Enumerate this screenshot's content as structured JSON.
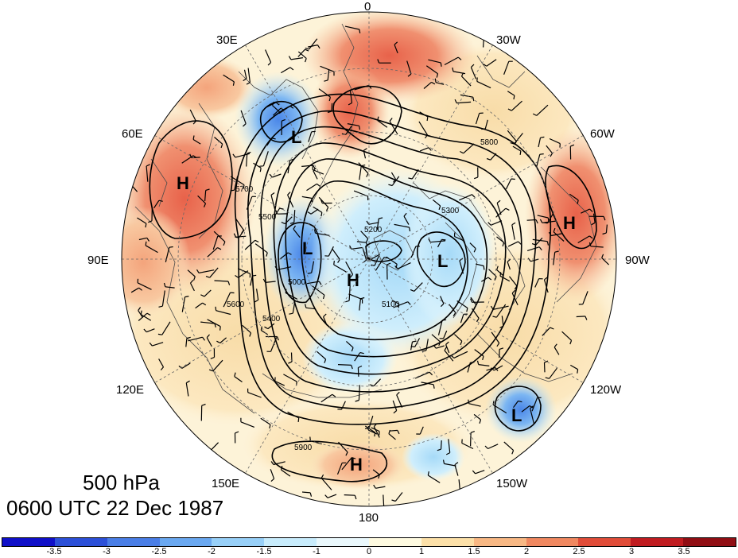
{
  "map": {
    "title_line1": "500 hPa",
    "title_line2": "0600 UTC 22 Dec 1987",
    "projection": "north polar stereographic",
    "longitude_labels": {
      "top": "0",
      "top_right_1": "30W",
      "right_1": "60W",
      "right": "90W",
      "right_2": "120W",
      "bottom_right": "150W",
      "bottom": "180",
      "bottom_left": "150E",
      "left_2": "120E",
      "left": "90E",
      "left_1": "60E",
      "top_left_1": "30E"
    },
    "pressure_centers": [
      {
        "label": "H",
        "region": "central Asia"
      },
      {
        "label": "L",
        "region": "Scandinavia / Barents"
      },
      {
        "label": "L",
        "region": "Siberia"
      },
      {
        "label": "H",
        "region": "North Pole"
      },
      {
        "label": "L",
        "region": "Canadian Arctic"
      },
      {
        "label": "H",
        "region": "eastern North America"
      },
      {
        "label": "L",
        "region": "Gulf of Alaska"
      },
      {
        "label": "H",
        "region": "North Pacific"
      }
    ],
    "contour_labels": [
      "5900",
      "5800",
      "5700",
      "5600",
      "5500",
      "5400",
      "5300",
      "5200",
      "5100",
      "5000"
    ],
    "colors": {
      "neg_strong": "#2040c8",
      "pos_strong": "#d0302a",
      "land_line": "#505050",
      "contour": "#000000"
    }
  },
  "colorbar": {
    "tick_labels": [
      "-3.5",
      "-3",
      "-2.5",
      "-2",
      "-1.5",
      "-1",
      "0",
      "1",
      "1.5",
      "2",
      "2.5",
      "3",
      "3.5"
    ],
    "colors": [
      "#1010c8",
      "#2c50d8",
      "#4a7ee6",
      "#6aa8f0",
      "#98d0f8",
      "#c8ecfc",
      "#eaf8fc",
      "#fefae0",
      "#fce0a8",
      "#f8b884",
      "#f08860",
      "#e04c38",
      "#c01c20",
      "#900e14"
    ]
  }
}
